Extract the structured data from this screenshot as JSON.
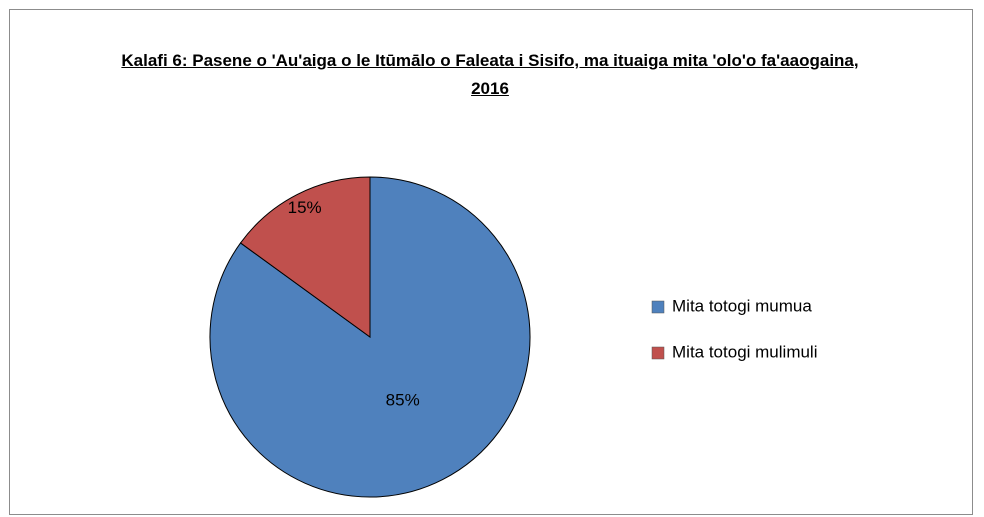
{
  "chart_data": {
    "type": "pie",
    "title": "Kalafi 6: Pasene o 'Au'aiga o le Itūmālo o Faleata i Sisifo, ma ituaiga mita 'olo'o fa'aaogaina, 2016",
    "categories": [
      "Mita totogi mumua",
      "Mita totogi mulimuli"
    ],
    "values": [
      85,
      15
    ],
    "value_labels": [
      "85%",
      "15%"
    ],
    "colors": [
      "#4f81bd",
      "#c0504d"
    ],
    "legend": "right"
  }
}
